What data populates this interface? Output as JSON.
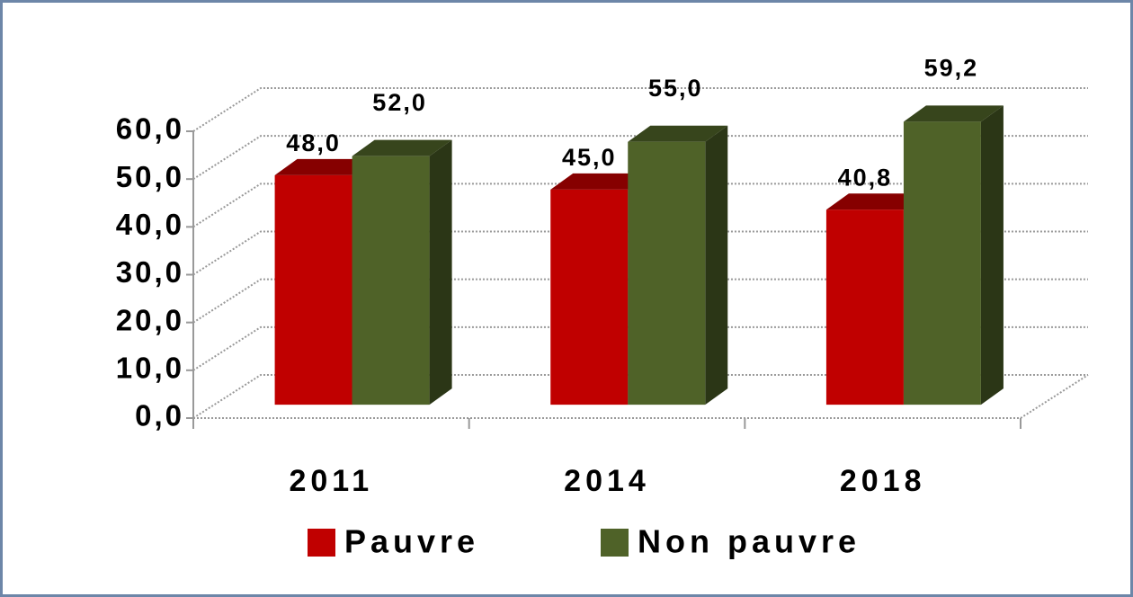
{
  "chart_data": {
    "type": "bar3d",
    "categories": [
      "2011",
      "2014",
      "2018"
    ],
    "series": [
      {
        "name": "Pauvre",
        "color": "#c00000",
        "values": [
          48.0,
          45.0,
          40.8
        ],
        "value_labels": [
          "48,0",
          "45,0",
          "40,8"
        ]
      },
      {
        "name": "Non pauvre",
        "color": "#4f6228",
        "values": [
          52.0,
          55.0,
          59.2
        ],
        "value_labels": [
          "52,0",
          "55,0",
          "59,2"
        ]
      }
    ],
    "ylim": [
      0,
      60
    ],
    "yticks": [
      {
        "value": 0,
        "label": "0,0"
      },
      {
        "value": 10,
        "label": "10,0"
      },
      {
        "value": 20,
        "label": "20,0"
      },
      {
        "value": 30,
        "label": "30,0"
      },
      {
        "value": 40,
        "label": "40,0"
      },
      {
        "value": 50,
        "label": "50,0"
      },
      {
        "value": 60,
        "label": "60,0"
      }
    ],
    "grid": true,
    "legend": "bottom"
  }
}
